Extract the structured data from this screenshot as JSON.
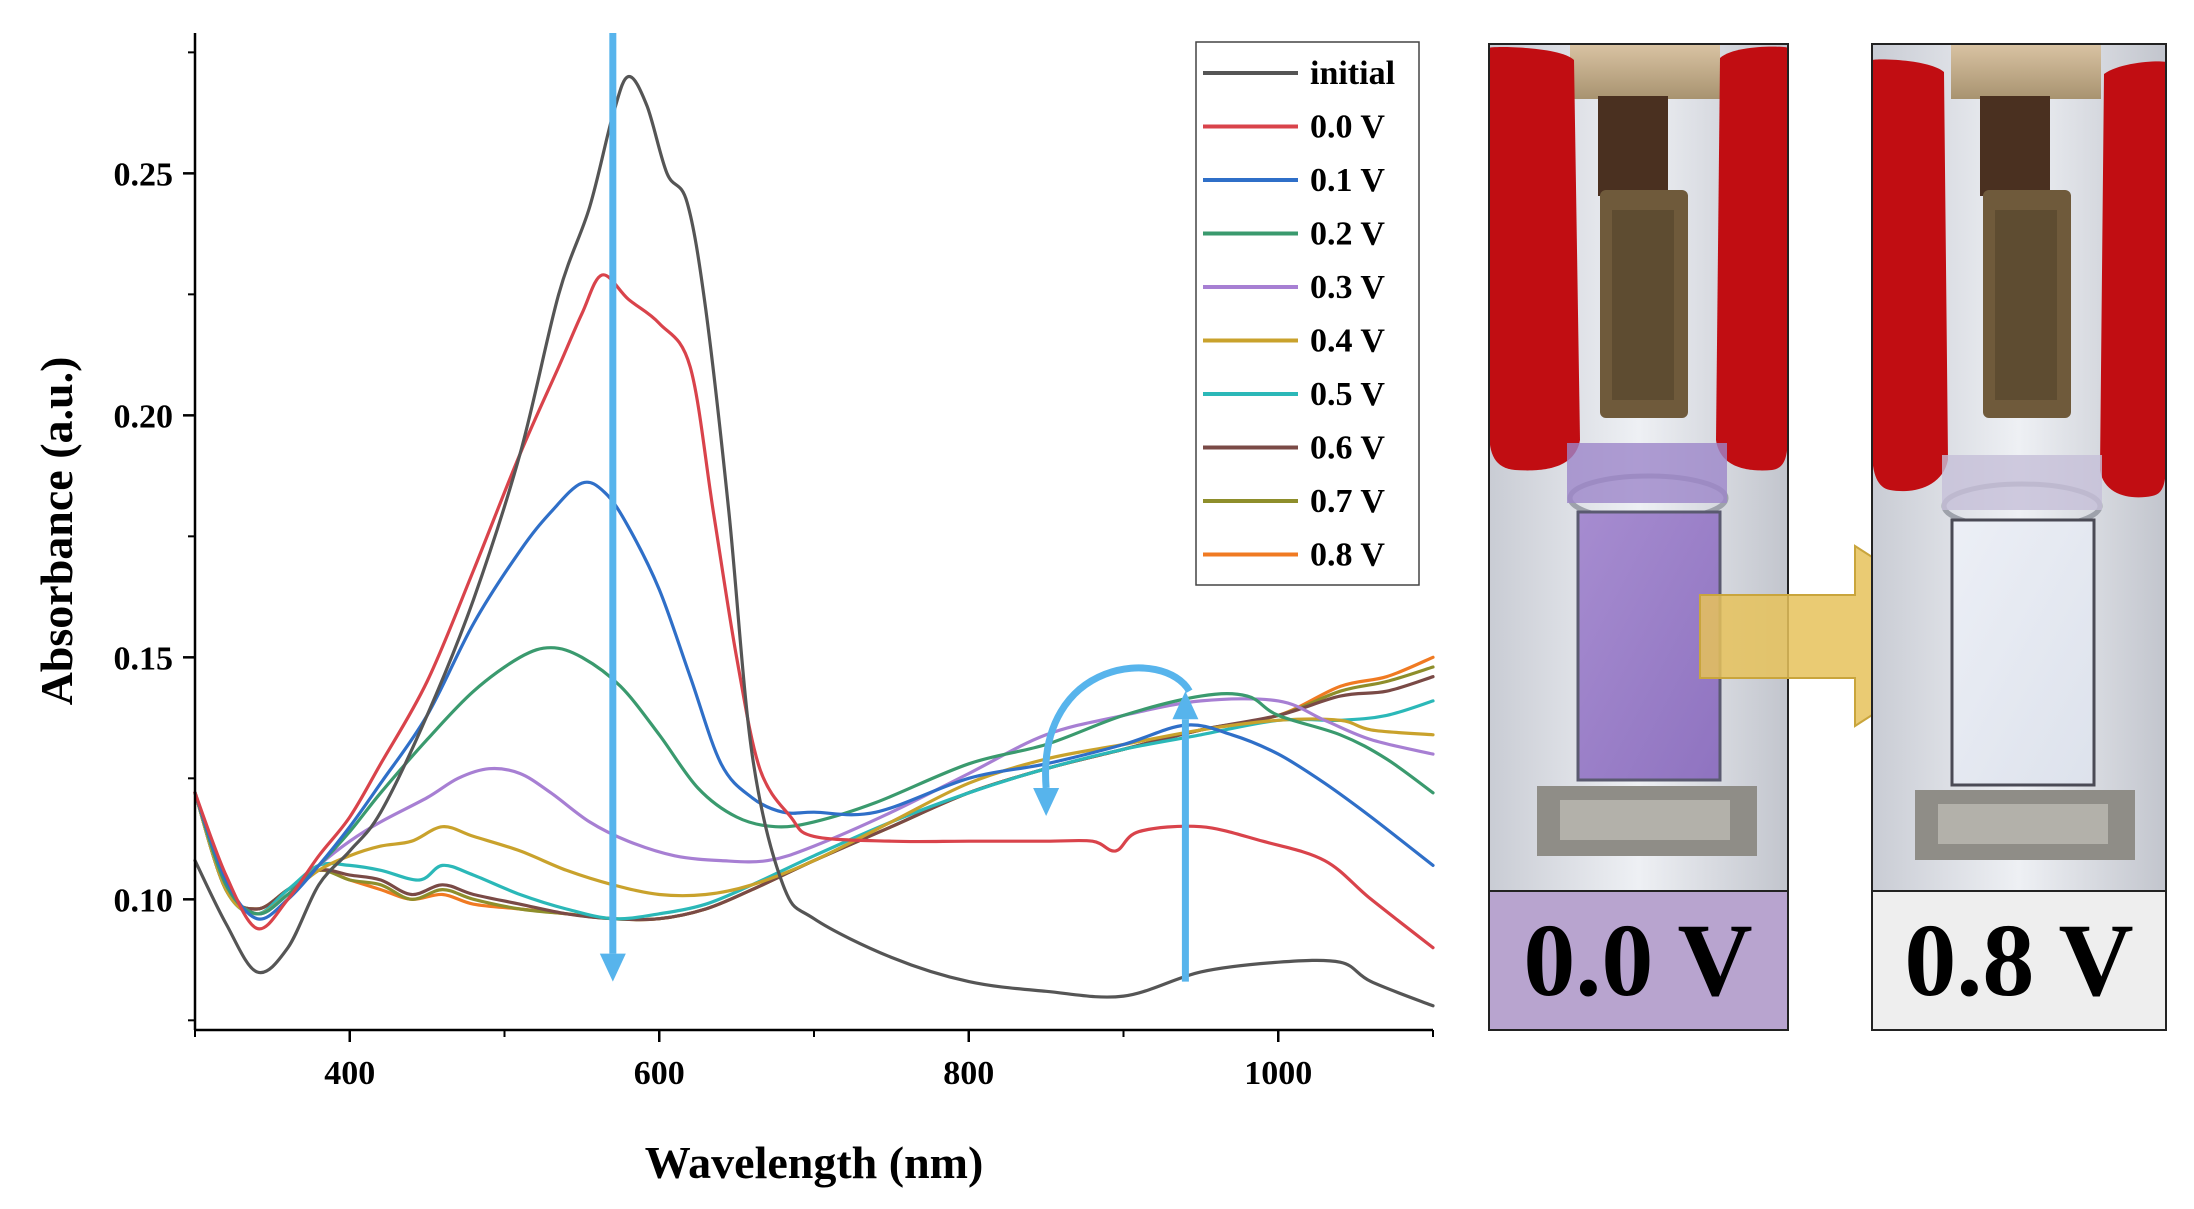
{
  "chart_data": {
    "type": "line",
    "title": "",
    "xlabel": "Wavelength (nm)",
    "ylabel": "Absorbance (a.u.)",
    "xlim": [
      300,
      1100
    ],
    "ylim": [
      0.073,
      0.279
    ],
    "x_ticks": [
      400,
      600,
      800,
      1000
    ],
    "y_ticks": [
      0.1,
      0.15,
      0.2,
      0.25
    ],
    "x_tick_labels": [
      "400",
      "600",
      "800",
      "1000"
    ],
    "y_tick_labels": [
      "0.10",
      "0.15",
      "0.20",
      "0.25"
    ],
    "grid": false,
    "legend_position": "top-right",
    "series": [
      {
        "name": "initial",
        "color": "#555555",
        "points": [
          [
            300,
            0.108
          ],
          [
            320,
            0.095
          ],
          [
            340,
            0.085
          ],
          [
            360,
            0.09
          ],
          [
            380,
            0.103
          ],
          [
            400,
            0.11
          ],
          [
            420,
            0.118
          ],
          [
            450,
            0.138
          ],
          [
            480,
            0.162
          ],
          [
            510,
            0.192
          ],
          [
            535,
            0.225
          ],
          [
            555,
            0.243
          ],
          [
            570,
            0.262
          ],
          [
            580,
            0.27
          ],
          [
            592,
            0.264
          ],
          [
            605,
            0.25
          ],
          [
            618,
            0.244
          ],
          [
            630,
            0.222
          ],
          [
            645,
            0.18
          ],
          [
            660,
            0.13
          ],
          [
            680,
            0.103
          ],
          [
            700,
            0.096
          ],
          [
            750,
            0.088
          ],
          [
            800,
            0.083
          ],
          [
            850,
            0.081
          ],
          [
            900,
            0.08
          ],
          [
            950,
            0.085
          ],
          [
            1000,
            0.087
          ],
          [
            1040,
            0.087
          ],
          [
            1060,
            0.083
          ],
          [
            1100,
            0.078
          ]
        ]
      },
      {
        "name": "0.0 V",
        "color": "#d9434b",
        "points": [
          [
            300,
            0.122
          ],
          [
            320,
            0.105
          ],
          [
            340,
            0.094
          ],
          [
            360,
            0.1
          ],
          [
            380,
            0.109
          ],
          [
            400,
            0.117
          ],
          [
            420,
            0.128
          ],
          [
            450,
            0.145
          ],
          [
            480,
            0.168
          ],
          [
            510,
            0.192
          ],
          [
            535,
            0.21
          ],
          [
            550,
            0.221
          ],
          [
            563,
            0.229
          ],
          [
            580,
            0.224
          ],
          [
            600,
            0.219
          ],
          [
            620,
            0.21
          ],
          [
            635,
            0.18
          ],
          [
            650,
            0.15
          ],
          [
            665,
            0.127
          ],
          [
            685,
            0.117
          ],
          [
            700,
            0.113
          ],
          [
            750,
            0.112
          ],
          [
            800,
            0.112
          ],
          [
            850,
            0.112
          ],
          [
            880,
            0.112
          ],
          [
            895,
            0.11
          ],
          [
            910,
            0.114
          ],
          [
            950,
            0.115
          ],
          [
            990,
            0.112
          ],
          [
            1030,
            0.108
          ],
          [
            1060,
            0.1
          ],
          [
            1100,
            0.09
          ]
        ]
      },
      {
        "name": "0.1 V",
        "color": "#2f6fc8",
        "points": [
          [
            300,
            0.122
          ],
          [
            320,
            0.104
          ],
          [
            340,
            0.096
          ],
          [
            360,
            0.1
          ],
          [
            380,
            0.107
          ],
          [
            400,
            0.115
          ],
          [
            420,
            0.124
          ],
          [
            450,
            0.138
          ],
          [
            480,
            0.157
          ],
          [
            510,
            0.172
          ],
          [
            530,
            0.18
          ],
          [
            550,
            0.186
          ],
          [
            565,
            0.184
          ],
          [
            580,
            0.177
          ],
          [
            600,
            0.164
          ],
          [
            620,
            0.146
          ],
          [
            640,
            0.128
          ],
          [
            660,
            0.121
          ],
          [
            680,
            0.118
          ],
          [
            700,
            0.118
          ],
          [
            740,
            0.118
          ],
          [
            800,
            0.125
          ],
          [
            850,
            0.128
          ],
          [
            900,
            0.132
          ],
          [
            940,
            0.136
          ],
          [
            970,
            0.134
          ],
          [
            1000,
            0.13
          ],
          [
            1030,
            0.124
          ],
          [
            1060,
            0.117
          ],
          [
            1100,
            0.107
          ]
        ]
      },
      {
        "name": "0.2 V",
        "color": "#3a9a6e",
        "points": [
          [
            300,
            0.122
          ],
          [
            320,
            0.103
          ],
          [
            340,
            0.097
          ],
          [
            360,
            0.101
          ],
          [
            380,
            0.107
          ],
          [
            400,
            0.114
          ],
          [
            420,
            0.122
          ],
          [
            450,
            0.133
          ],
          [
            480,
            0.143
          ],
          [
            510,
            0.15
          ],
          [
            530,
            0.152
          ],
          [
            550,
            0.15
          ],
          [
            575,
            0.144
          ],
          [
            600,
            0.134
          ],
          [
            625,
            0.123
          ],
          [
            650,
            0.117
          ],
          [
            675,
            0.115
          ],
          [
            700,
            0.116
          ],
          [
            740,
            0.12
          ],
          [
            800,
            0.128
          ],
          [
            850,
            0.132
          ],
          [
            900,
            0.138
          ],
          [
            950,
            0.142
          ],
          [
            980,
            0.142
          ],
          [
            1000,
            0.138
          ],
          [
            1040,
            0.134
          ],
          [
            1070,
            0.129
          ],
          [
            1100,
            0.122
          ]
        ]
      },
      {
        "name": "0.3 V",
        "color": "#a77fd3",
        "points": [
          [
            300,
            0.122
          ],
          [
            320,
            0.103
          ],
          [
            340,
            0.097
          ],
          [
            360,
            0.101
          ],
          [
            380,
            0.107
          ],
          [
            400,
            0.112
          ],
          [
            420,
            0.116
          ],
          [
            450,
            0.121
          ],
          [
            470,
            0.125
          ],
          [
            490,
            0.127
          ],
          [
            510,
            0.126
          ],
          [
            530,
            0.122
          ],
          [
            555,
            0.116
          ],
          [
            580,
            0.112
          ],
          [
            610,
            0.109
          ],
          [
            640,
            0.108
          ],
          [
            670,
            0.108
          ],
          [
            700,
            0.111
          ],
          [
            750,
            0.118
          ],
          [
            800,
            0.126
          ],
          [
            850,
            0.134
          ],
          [
            900,
            0.138
          ],
          [
            950,
            0.141
          ],
          [
            1000,
            0.141
          ],
          [
            1030,
            0.137
          ],
          [
            1060,
            0.133
          ],
          [
            1100,
            0.13
          ]
        ]
      },
      {
        "name": "0.4 V",
        "color": "#c9a22c",
        "points": [
          [
            300,
            0.122
          ],
          [
            320,
            0.102
          ],
          [
            340,
            0.097
          ],
          [
            360,
            0.101
          ],
          [
            380,
            0.106
          ],
          [
            400,
            0.109
          ],
          [
            420,
            0.111
          ],
          [
            440,
            0.112
          ],
          [
            460,
            0.115
          ],
          [
            480,
            0.113
          ],
          [
            510,
            0.11
          ],
          [
            540,
            0.106
          ],
          [
            570,
            0.103
          ],
          [
            600,
            0.101
          ],
          [
            630,
            0.101
          ],
          [
            660,
            0.103
          ],
          [
            700,
            0.108
          ],
          [
            750,
            0.116
          ],
          [
            800,
            0.124
          ],
          [
            850,
            0.129
          ],
          [
            900,
            0.132
          ],
          [
            950,
            0.135
          ],
          [
            1000,
            0.137
          ],
          [
            1040,
            0.137
          ],
          [
            1060,
            0.135
          ],
          [
            1100,
            0.134
          ]
        ]
      },
      {
        "name": "0.5 V",
        "color": "#2bb8b8",
        "points": [
          [
            300,
            0.122
          ],
          [
            320,
            0.102
          ],
          [
            340,
            0.097
          ],
          [
            360,
            0.102
          ],
          [
            380,
            0.107
          ],
          [
            400,
            0.107
          ],
          [
            420,
            0.106
          ],
          [
            445,
            0.104
          ],
          [
            460,
            0.107
          ],
          [
            480,
            0.105
          ],
          [
            510,
            0.101
          ],
          [
            540,
            0.098
          ],
          [
            570,
            0.096
          ],
          [
            600,
            0.097
          ],
          [
            630,
            0.099
          ],
          [
            660,
            0.103
          ],
          [
            700,
            0.109
          ],
          [
            750,
            0.116
          ],
          [
            800,
            0.122
          ],
          [
            850,
            0.127
          ],
          [
            900,
            0.131
          ],
          [
            950,
            0.134
          ],
          [
            1000,
            0.137
          ],
          [
            1040,
            0.137
          ],
          [
            1070,
            0.138
          ],
          [
            1100,
            0.141
          ]
        ]
      },
      {
        "name": "0.6 V",
        "color": "#7a4a46",
        "points": [
          [
            300,
            0.122
          ],
          [
            320,
            0.102
          ],
          [
            340,
            0.098
          ],
          [
            360,
            0.102
          ],
          [
            380,
            0.106
          ],
          [
            400,
            0.105
          ],
          [
            420,
            0.104
          ],
          [
            440,
            0.101
          ],
          [
            460,
            0.103
          ],
          [
            480,
            0.101
          ],
          [
            510,
            0.099
          ],
          [
            540,
            0.097
          ],
          [
            570,
            0.096
          ],
          [
            600,
            0.096
          ],
          [
            630,
            0.098
          ],
          [
            660,
            0.102
          ],
          [
            700,
            0.108
          ],
          [
            750,
            0.115
          ],
          [
            800,
            0.122
          ],
          [
            850,
            0.127
          ],
          [
            900,
            0.131
          ],
          [
            950,
            0.135
          ],
          [
            1000,
            0.138
          ],
          [
            1040,
            0.142
          ],
          [
            1070,
            0.143
          ],
          [
            1100,
            0.146
          ]
        ]
      },
      {
        "name": "0.7 V",
        "color": "#8e8e2b",
        "points": [
          [
            300,
            0.122
          ],
          [
            320,
            0.102
          ],
          [
            340,
            0.098
          ],
          [
            360,
            0.102
          ],
          [
            380,
            0.106
          ],
          [
            400,
            0.104
          ],
          [
            420,
            0.103
          ],
          [
            440,
            0.1
          ],
          [
            460,
            0.102
          ],
          [
            480,
            0.1
          ],
          [
            510,
            0.098
          ],
          [
            540,
            0.097
          ],
          [
            570,
            0.096
          ],
          [
            600,
            0.096
          ],
          [
            630,
            0.098
          ],
          [
            660,
            0.102
          ],
          [
            700,
            0.108
          ],
          [
            750,
            0.115
          ],
          [
            800,
            0.122
          ],
          [
            850,
            0.127
          ],
          [
            900,
            0.131
          ],
          [
            950,
            0.135
          ],
          [
            1000,
            0.138
          ],
          [
            1040,
            0.143
          ],
          [
            1070,
            0.145
          ],
          [
            1100,
            0.148
          ]
        ]
      },
      {
        "name": "0.8 V",
        "color": "#f07a22",
        "points": [
          [
            300,
            0.122
          ],
          [
            320,
            0.102
          ],
          [
            340,
            0.098
          ],
          [
            360,
            0.102
          ],
          [
            380,
            0.106
          ],
          [
            400,
            0.104
          ],
          [
            420,
            0.102
          ],
          [
            440,
            0.1
          ],
          [
            460,
            0.101
          ],
          [
            480,
            0.099
          ],
          [
            510,
            0.098
          ],
          [
            540,
            0.097
          ],
          [
            570,
            0.096
          ],
          [
            600,
            0.096
          ],
          [
            630,
            0.098
          ],
          [
            660,
            0.102
          ],
          [
            700,
            0.108
          ],
          [
            750,
            0.115
          ],
          [
            800,
            0.122
          ],
          [
            850,
            0.127
          ],
          [
            900,
            0.131
          ],
          [
            950,
            0.135
          ],
          [
            1000,
            0.138
          ],
          [
            1040,
            0.144
          ],
          [
            1070,
            0.146
          ],
          [
            1100,
            0.15
          ]
        ]
      }
    ],
    "annotations": [
      {
        "kind": "arrow-down",
        "x": 570,
        "y_from": 0.279,
        "y_to": 0.083,
        "color": "#57b4ec"
      },
      {
        "kind": "arrow-up",
        "x": 940,
        "y_from": 0.083,
        "y_to": 0.143,
        "color": "#57b4ec"
      },
      {
        "kind": "curved-arrow",
        "x_from": 940,
        "x_to": 850,
        "color": "#57b4ec"
      }
    ]
  },
  "photos": {
    "left_label": "0.0 V",
    "right_label": "0.8 V",
    "left_label_bg": "#b8a4cf",
    "right_label_bg": "#eeeeee",
    "transition_arrow_color": "#e6c25a"
  }
}
